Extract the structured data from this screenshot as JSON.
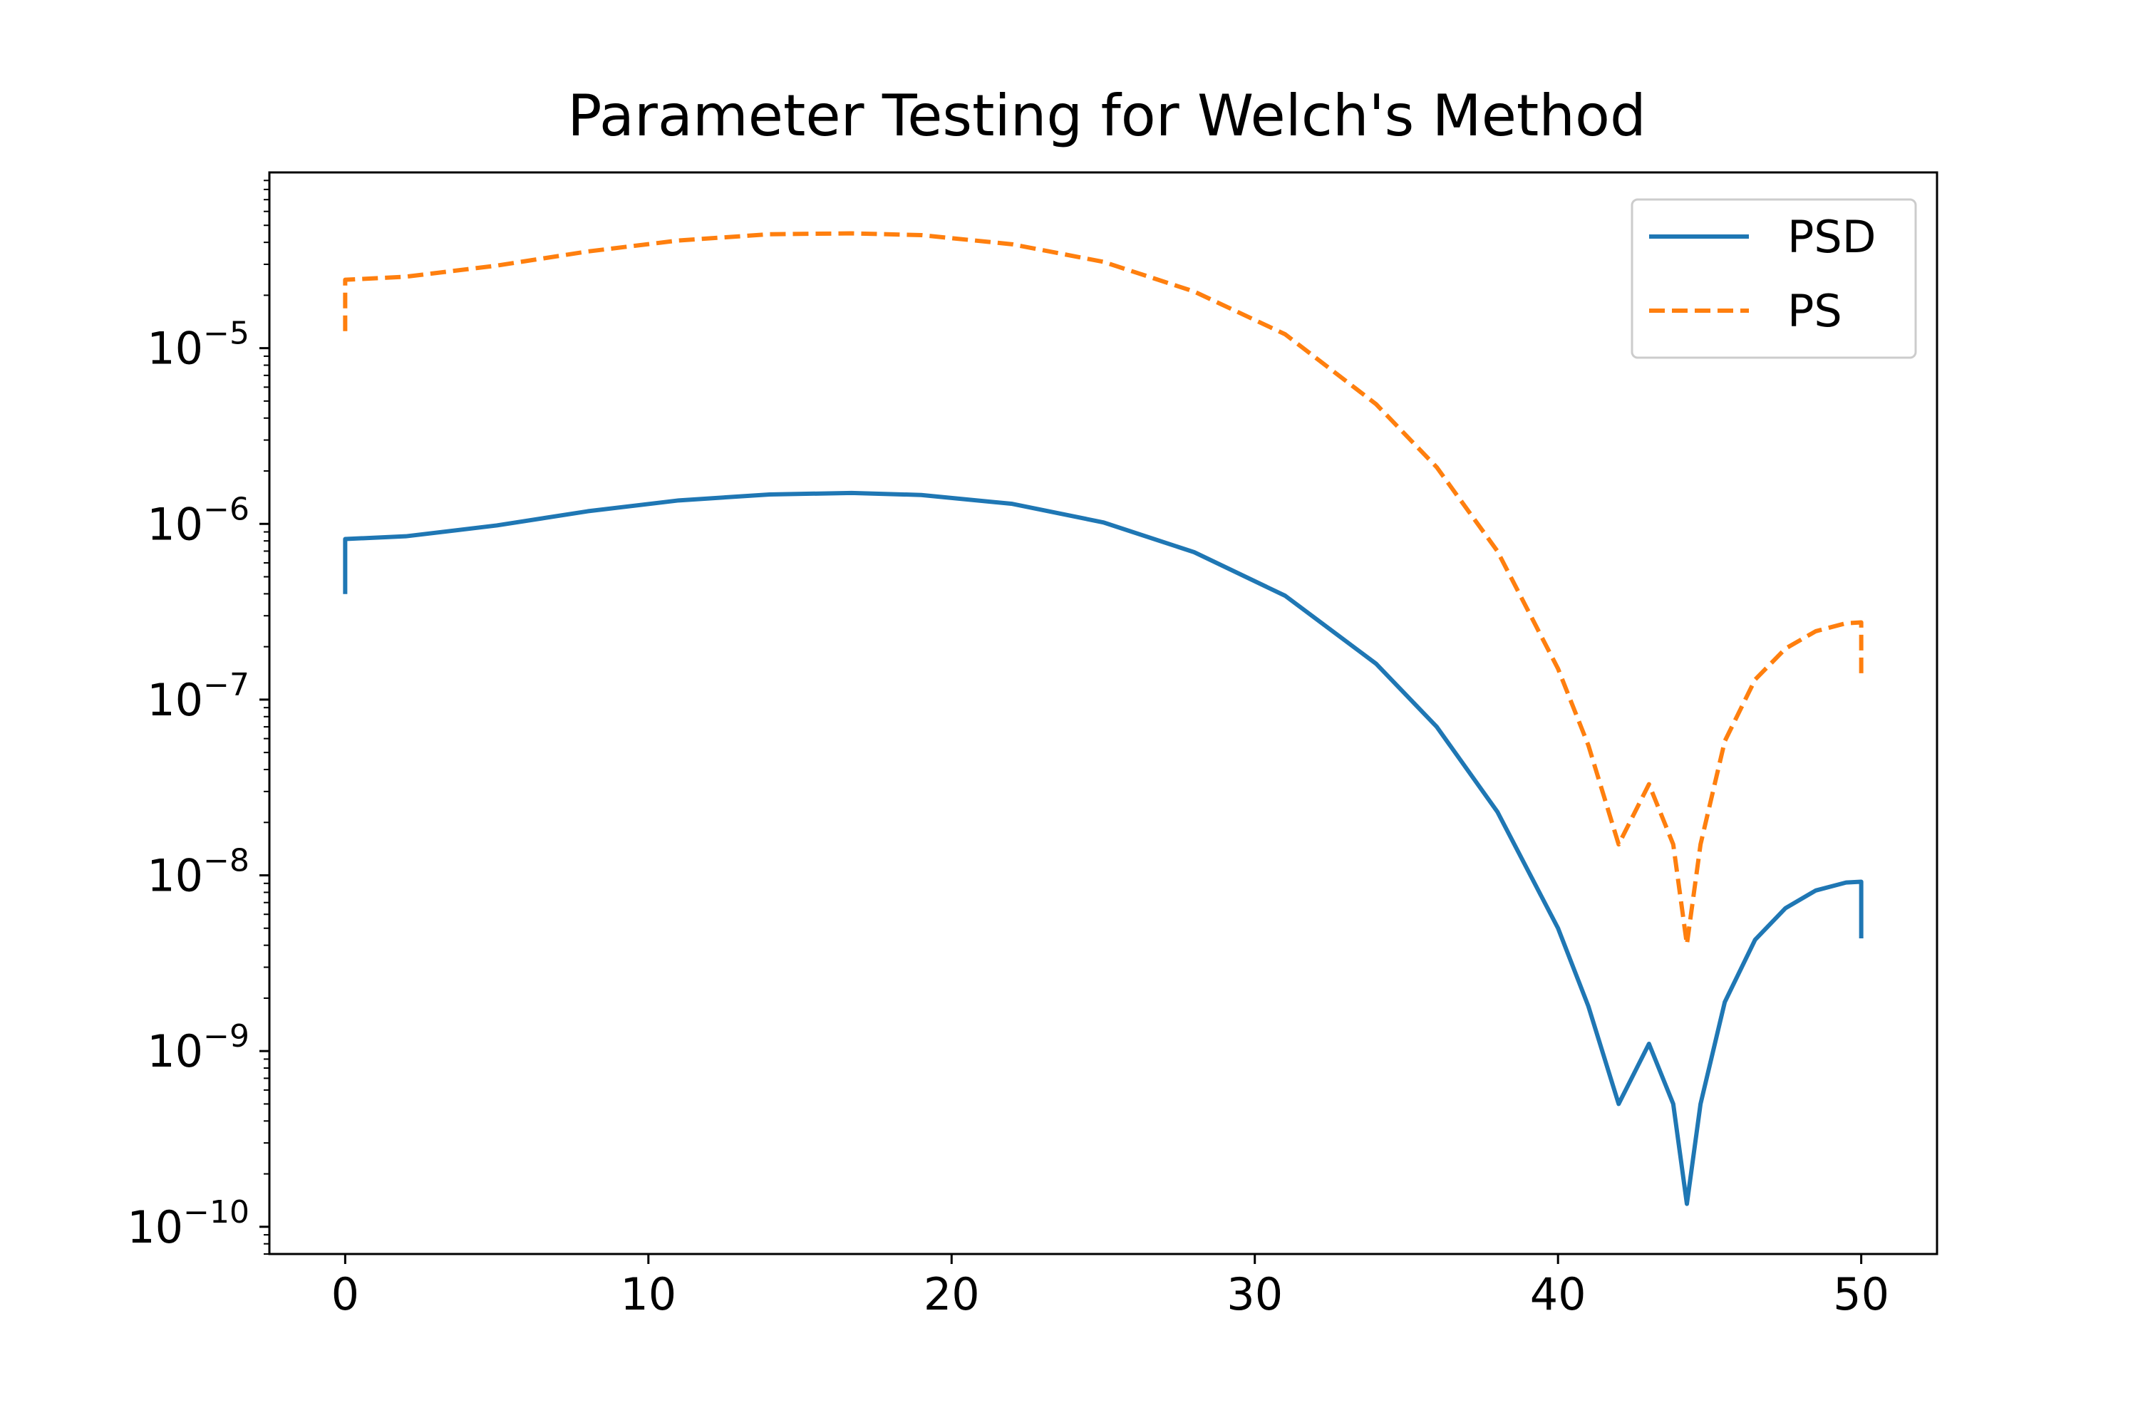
{
  "chart_data": {
    "type": "line",
    "title": "Parameter Testing for Welch's Method",
    "xlabel": "",
    "ylabel": "",
    "xlim": [
      -2.5,
      52.5
    ],
    "ylim": [
      7e-11,
      0.0001
    ],
    "yscale": "log",
    "grid": false,
    "legend_position": "top-right",
    "x_ticks": [
      0,
      10,
      20,
      30,
      40,
      50
    ],
    "y_ticks": [
      {
        "value": 1e-10,
        "base": "10",
        "exponent": "−10"
      },
      {
        "value": 1e-09,
        "base": "10",
        "exponent": "−9"
      },
      {
        "value": 1e-08,
        "base": "10",
        "exponent": "−8"
      },
      {
        "value": 1e-07,
        "base": "10",
        "exponent": "−7"
      },
      {
        "value": 1e-06,
        "base": "10",
        "exponent": "−6"
      },
      {
        "value": 1e-05,
        "base": "10",
        "exponent": "−5"
      }
    ],
    "series": [
      {
        "name": "PSD",
        "color": "#1f77b4",
        "style": "solid",
        "x": [
          0,
          0,
          2,
          5,
          8,
          11,
          14,
          16.7,
          19,
          22,
          25,
          28,
          31,
          34,
          36,
          38,
          40,
          41,
          42,
          43,
          43.8,
          44.25,
          44.7,
          45.5,
          46.5,
          47.5,
          48.5,
          49.5,
          50,
          50
        ],
        "y": [
          4.1e-07,
          8.2e-07,
          8.5e-07,
          9.8e-07,
          1.18e-06,
          1.36e-06,
          1.47e-06,
          1.5e-06,
          1.46e-06,
          1.3e-06,
          1.02e-06,
          6.9e-07,
          3.9e-07,
          1.6e-07,
          7e-08,
          2.3e-08,
          5e-09,
          1.8e-09,
          5e-10,
          1.1e-09,
          5e-10,
          1.35e-10,
          5e-10,
          1.9e-09,
          4.3e-09,
          6.5e-09,
          8.2e-09,
          9.1e-09,
          9.2e-09,
          4.5e-09
        ]
      },
      {
        "name": "PS",
        "color": "#ff7f0e",
        "style": "dashed",
        "x": [
          0,
          0,
          2,
          5,
          8,
          11,
          14,
          16.7,
          19,
          22,
          25,
          28,
          31,
          34,
          36,
          38,
          40,
          41,
          42,
          43,
          43.8,
          44.25,
          44.7,
          45.5,
          46.5,
          47.5,
          48.5,
          49.5,
          50,
          50
        ],
        "y": [
          1.25e-05,
          2.45e-05,
          2.55e-05,
          2.95e-05,
          3.55e-05,
          4.1e-05,
          4.45e-05,
          4.5e-05,
          4.4e-05,
          3.9e-05,
          3.1e-05,
          2.1e-05,
          1.2e-05,
          4.8e-06,
          2.1e-06,
          7e-07,
          1.5e-07,
          5.5e-08,
          1.5e-08,
          3.3e-08,
          1.5e-08,
          4.05e-09,
          1.5e-08,
          5.8e-08,
          1.3e-07,
          1.95e-07,
          2.45e-07,
          2.72e-07,
          2.75e-07,
          1.4e-07
        ]
      }
    ]
  }
}
